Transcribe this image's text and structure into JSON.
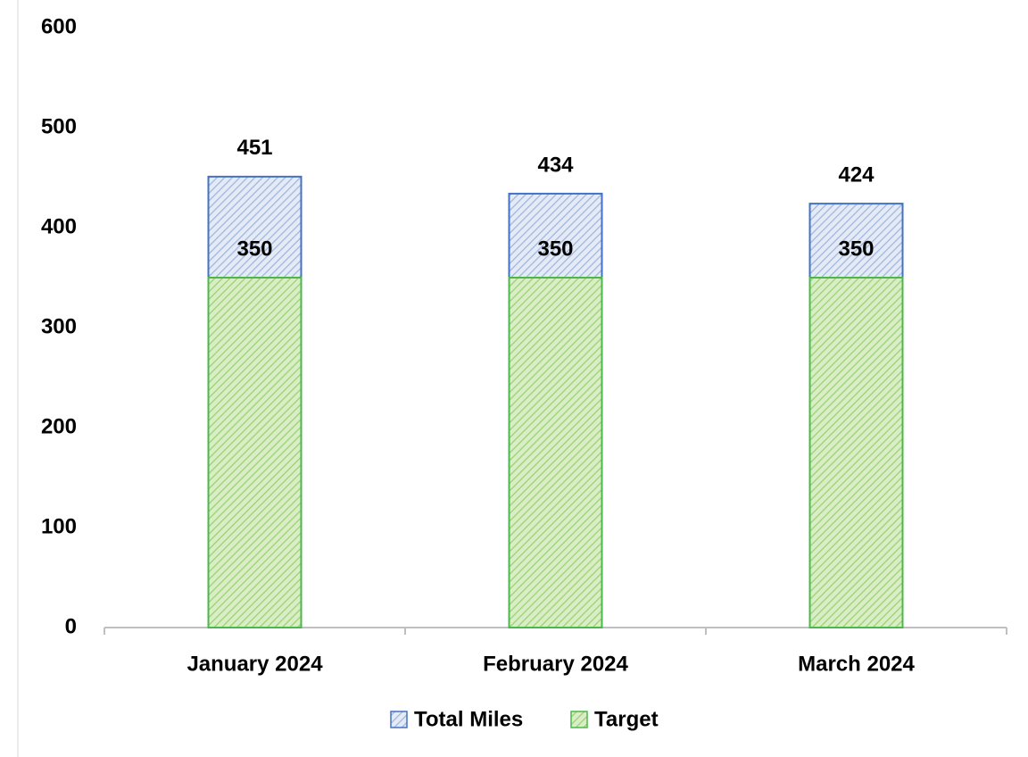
{
  "chart_data": {
    "type": "bar",
    "overlap": true,
    "categories": [
      "January 2024",
      "February 2024",
      "March 2024"
    ],
    "series": [
      {
        "name": "Total Miles",
        "color": "#4472c4",
        "values": [
          451,
          434,
          424
        ]
      },
      {
        "name": "Target",
        "color": "#4cb84c",
        "values": [
          350,
          350,
          350
        ]
      }
    ],
    "ylim": [
      0,
      600
    ],
    "yticks": [
      0,
      100,
      200,
      300,
      400,
      500,
      600
    ],
    "grid": false,
    "legend": "bottom",
    "data_labels": true
  }
}
